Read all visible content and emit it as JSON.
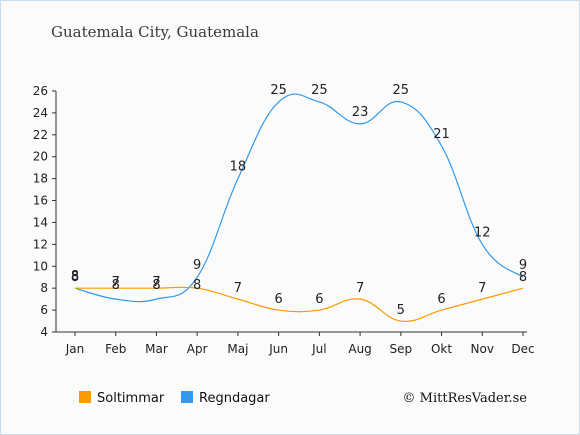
{
  "title": "Guatemala City, Guatemala",
  "copyright": "© MittResVader.se",
  "colors": {
    "sun": "#ff9900",
    "rain": "#3399ee",
    "axis": "#333333",
    "text": "#222222"
  },
  "chart_data": {
    "type": "line",
    "categories": [
      "Jan",
      "Feb",
      "Mar",
      "Apr",
      "Maj",
      "Jun",
      "Jul",
      "Aug",
      "Sep",
      "Okt",
      "Nov",
      "Dec"
    ],
    "series": [
      {
        "name": "Soltimmar",
        "color": "#ff9900",
        "values": [
          8,
          8,
          8,
          8,
          7,
          6,
          6,
          7,
          5,
          6,
          7,
          8
        ]
      },
      {
        "name": "Regndagar",
        "color": "#3399ee",
        "values": [
          8,
          7,
          7,
          9,
          18,
          25,
          25,
          23,
          25,
          21,
          12,
          9
        ]
      }
    ],
    "yticks": [
      4,
      6,
      8,
      10,
      12,
      14,
      16,
      18,
      20,
      22,
      24,
      26
    ],
    "ylim": [
      4,
      26
    ],
    "grid": false,
    "legend": "bottom-left"
  }
}
